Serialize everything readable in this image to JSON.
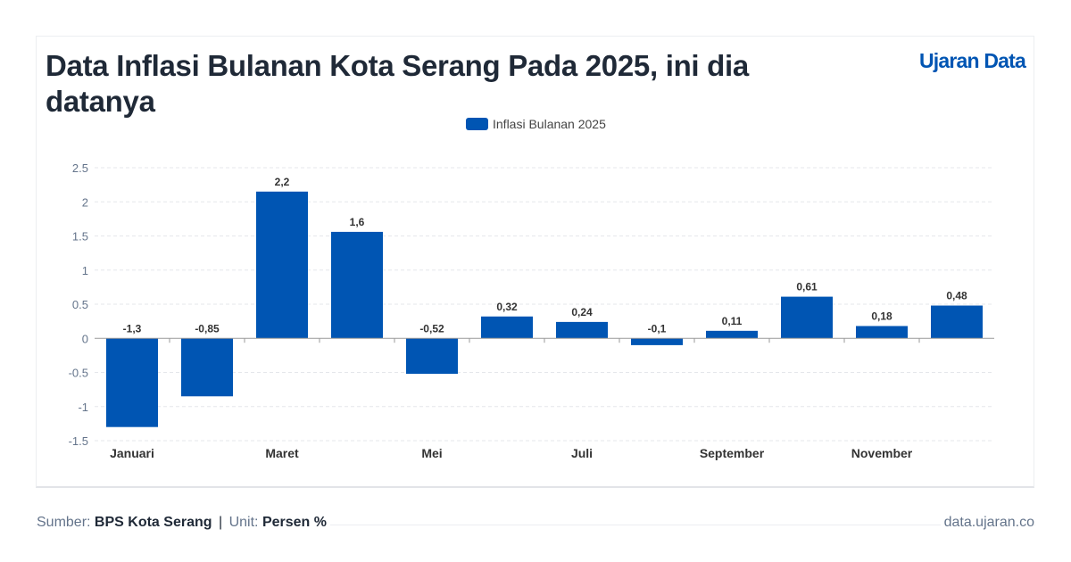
{
  "header": {
    "title": "Data Inflasi Bulanan Kota Serang Pada 2025, ini dia datanya",
    "brand": "Ujaran Data"
  },
  "footer": {
    "source_label": "Sumber:",
    "source": "BPS Kota Serang",
    "separator": "|",
    "unit_label": "Unit:",
    "unit": "Persen %",
    "site": "data.ujaran.co"
  },
  "colors": {
    "bar": "#0055b3",
    "title": "#1f2937",
    "brand": "#0055b3"
  },
  "chart_data": {
    "type": "bar",
    "title": "",
    "legend": {
      "position": "top-center",
      "entries": [
        "Inflasi Bulanan 2025"
      ]
    },
    "series": [
      {
        "name": "Inflasi Bulanan 2025",
        "values": [
          -1.3,
          -0.85,
          2.15,
          1.56,
          -0.52,
          0.32,
          0.24,
          -0.1,
          0.11,
          0.61,
          0.18,
          0.48
        ],
        "data_labels": [
          "-1,3",
          "-0,85",
          "2,2",
          "1,6",
          "-0,52",
          "0,32",
          "0,24",
          "-0,1",
          "0,11",
          "0,61",
          "0,18",
          "0,48"
        ]
      }
    ],
    "categories": [
      "Januari",
      "",
      "Maret",
      "",
      "Mei",
      "",
      "Juli",
      "",
      "September",
      "",
      "November",
      ""
    ],
    "ylim": [
      -1.5,
      2.5
    ],
    "yticks": [
      "2.5",
      "2",
      "1.5",
      "1",
      "0.5",
      "0",
      "-0.5",
      "-1",
      "-1.5"
    ],
    "ytick_values": [
      2.5,
      2,
      1.5,
      1,
      0.5,
      0,
      -0.5,
      -1,
      -1.5
    ],
    "grid": true,
    "xlabel": "",
    "ylabel": ""
  }
}
